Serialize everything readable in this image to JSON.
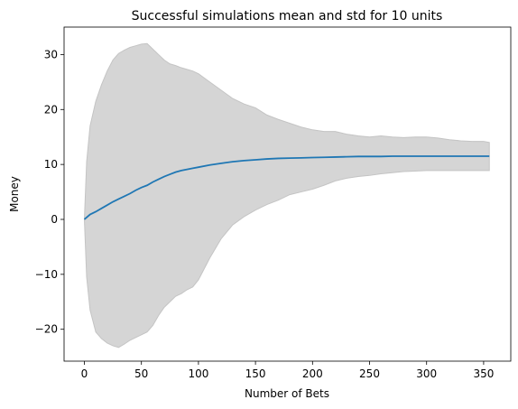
{
  "chart_data": {
    "type": "line",
    "title": "Successful simulations mean and std for 10 units",
    "xlabel": "Number of Bets",
    "ylabel": "Money",
    "xlim": [
      -17.8,
      373.8
    ],
    "ylim": [
      -25.8,
      35.0
    ],
    "xticks": [
      0,
      50,
      100,
      150,
      200,
      250,
      300,
      350
    ],
    "yticks": [
      -20,
      -10,
      0,
      10,
      20,
      30
    ],
    "grid": false,
    "legend": "none",
    "colors": {
      "mean_line": "#1f77b4",
      "std_band": "#d5d5d5",
      "std_band_edge": "#c4c4c4"
    },
    "series": [
      {
        "role": "mean",
        "x": [
          0,
          5,
          10,
          15,
          20,
          25,
          30,
          35,
          40,
          45,
          50,
          55,
          60,
          65,
          70,
          75,
          80,
          85,
          90,
          95,
          100,
          110,
          120,
          130,
          140,
          150,
          160,
          170,
          180,
          190,
          200,
          210,
          220,
          230,
          240,
          250,
          260,
          270,
          280,
          290,
          300,
          310,
          320,
          330,
          340,
          350,
          355
        ],
        "values": [
          0,
          0.9,
          1.4,
          2.0,
          2.6,
          3.2,
          3.7,
          4.2,
          4.7,
          5.3,
          5.8,
          6.2,
          6.8,
          7.3,
          7.8,
          8.2,
          8.6,
          8.9,
          9.1,
          9.3,
          9.5,
          9.9,
          10.2,
          10.5,
          10.7,
          10.85,
          11.0,
          11.1,
          11.15,
          11.2,
          11.25,
          11.3,
          11.35,
          11.4,
          11.45,
          11.45,
          11.45,
          11.5,
          11.5,
          11.5,
          11.5,
          11.5,
          11.5,
          11.5,
          11.5,
          11.5,
          11.5
        ]
      },
      {
        "role": "upper",
        "x": [
          0,
          2,
          5,
          10,
          15,
          20,
          25,
          30,
          35,
          40,
          45,
          50,
          55,
          60,
          65,
          70,
          75,
          80,
          85,
          90,
          95,
          100,
          110,
          120,
          130,
          140,
          150,
          160,
          170,
          180,
          190,
          200,
          210,
          220,
          230,
          240,
          250,
          260,
          270,
          280,
          290,
          300,
          310,
          320,
          330,
          340,
          350,
          355
        ],
        "values": [
          0,
          10.5,
          17,
          21.5,
          24.5,
          27,
          29,
          30.2,
          30.8,
          31.3,
          31.6,
          31.9,
          32.0,
          31.0,
          30.0,
          29.0,
          28.3,
          28.0,
          27.6,
          27.3,
          27.0,
          26.5,
          25.0,
          23.5,
          22.0,
          21.0,
          20.3,
          19.0,
          18.2,
          17.5,
          16.8,
          16.3,
          16.0,
          16.0,
          15.5,
          15.2,
          15.0,
          15.2,
          15.0,
          14.9,
          15.0,
          15.0,
          14.8,
          14.5,
          14.3,
          14.2,
          14.2,
          14.0
        ]
      },
      {
        "role": "lower",
        "x": [
          0,
          2,
          5,
          10,
          15,
          20,
          25,
          30,
          35,
          40,
          45,
          50,
          55,
          60,
          65,
          70,
          75,
          80,
          85,
          90,
          95,
          100,
          110,
          120,
          130,
          140,
          150,
          160,
          170,
          180,
          190,
          200,
          210,
          220,
          230,
          240,
          250,
          260,
          270,
          280,
          290,
          300,
          310,
          320,
          330,
          340,
          350,
          355
        ],
        "values": [
          0,
          -10.5,
          -16.5,
          -20.5,
          -21.7,
          -22.5,
          -23.0,
          -23.3,
          -22.7,
          -22.0,
          -21.5,
          -21.0,
          -20.5,
          -19.3,
          -17.5,
          -16.0,
          -15.0,
          -14.0,
          -13.5,
          -12.8,
          -12.3,
          -11.0,
          -7.0,
          -3.5,
          -1.0,
          0.5,
          1.7,
          2.7,
          3.5,
          4.5,
          5.0,
          5.5,
          6.2,
          7.0,
          7.5,
          7.8,
          8.0,
          8.3,
          8.5,
          8.7,
          8.8,
          8.9,
          8.9,
          8.9,
          8.9,
          8.9,
          8.9,
          8.9
        ]
      }
    ]
  }
}
